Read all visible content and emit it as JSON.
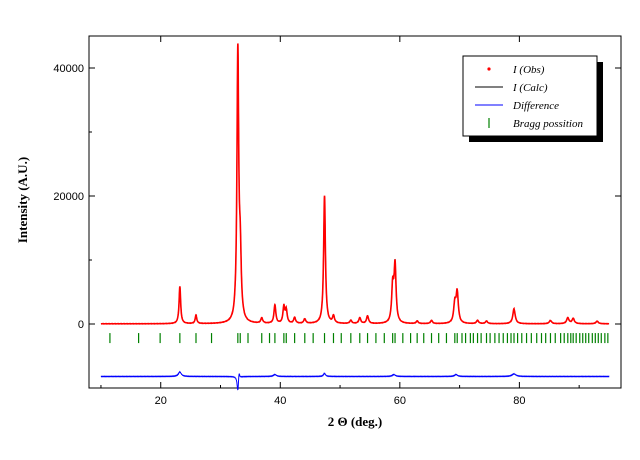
{
  "chart_data": {
    "type": "line",
    "title": "",
    "xlabel": "2 Θ (deg.)",
    "ylabel": "Intensity (A.U.)",
    "xlim": [
      8,
      97
    ],
    "ylim": [
      -10000,
      45000
    ],
    "x_ticks": [
      20,
      40,
      60,
      80
    ],
    "x_tick_labels": [
      "20",
      "40",
      "60",
      "80"
    ],
    "y_ticks": [
      0,
      20000,
      40000
    ],
    "y_tick_labels": [
      "0",
      "20000",
      "40000"
    ],
    "grid": false,
    "legend_position": "top-right",
    "legend": [
      {
        "label": "I (Obs)",
        "color": "#ff0000",
        "marker": "dot"
      },
      {
        "label": "I (Calc)",
        "color": "#000000",
        "marker": "line"
      },
      {
        "label": "Difference",
        "color": "#0000ff",
        "marker": "line"
      },
      {
        "label": "Bragg possition",
        "color": "#008000",
        "marker": "tick"
      }
    ],
    "pattern_range": [
      10,
      95
    ],
    "background": 30,
    "peaks": [
      {
        "x": 23.2,
        "y": 5800,
        "w": 0.16
      },
      {
        "x": 25.9,
        "y": 1300,
        "w": 0.16
      },
      {
        "x": 32.9,
        "y": 41500,
        "w": 0.18
      },
      {
        "x": 33.3,
        "y": 9000,
        "w": 0.2
      },
      {
        "x": 36.9,
        "y": 800,
        "w": 0.2
      },
      {
        "x": 39.1,
        "y": 2900,
        "w": 0.18
      },
      {
        "x": 40.6,
        "y": 2600,
        "w": 0.18
      },
      {
        "x": 41.0,
        "y": 2000,
        "w": 0.18
      },
      {
        "x": 42.4,
        "y": 900,
        "w": 0.2
      },
      {
        "x": 44.1,
        "y": 700,
        "w": 0.2
      },
      {
        "x": 47.4,
        "y": 19800,
        "w": 0.18
      },
      {
        "x": 48.9,
        "y": 1100,
        "w": 0.2
      },
      {
        "x": 51.8,
        "y": 500,
        "w": 0.2
      },
      {
        "x": 53.3,
        "y": 900,
        "w": 0.2
      },
      {
        "x": 54.6,
        "y": 1200,
        "w": 0.2
      },
      {
        "x": 58.8,
        "y": 5500,
        "w": 0.2
      },
      {
        "x": 59.2,
        "y": 8900,
        "w": 0.2
      },
      {
        "x": 62.9,
        "y": 400,
        "w": 0.2
      },
      {
        "x": 65.3,
        "y": 500,
        "w": 0.2
      },
      {
        "x": 69.2,
        "y": 3000,
        "w": 0.22
      },
      {
        "x": 69.6,
        "y": 4700,
        "w": 0.22
      },
      {
        "x": 73.0,
        "y": 500,
        "w": 0.22
      },
      {
        "x": 74.5,
        "y": 400,
        "w": 0.22
      },
      {
        "x": 79.1,
        "y": 2300,
        "w": 0.24
      },
      {
        "x": 85.2,
        "y": 500,
        "w": 0.24
      },
      {
        "x": 88.1,
        "y": 900,
        "w": 0.24
      },
      {
        "x": 89.0,
        "y": 800,
        "w": 0.24
      },
      {
        "x": 93.0,
        "y": 400,
        "w": 0.24
      }
    ],
    "bragg_y": -2200,
    "bragg_positions": [
      11.5,
      16.3,
      19.9,
      23.2,
      25.9,
      28.5,
      32.9,
      33.3,
      34.6,
      36.9,
      38.2,
      39.1,
      40.6,
      41.0,
      42.4,
      44.1,
      45.5,
      47.4,
      48.9,
      50.2,
      51.8,
      53.3,
      54.6,
      56.0,
      57.4,
      58.8,
      59.2,
      60.5,
      61.8,
      62.9,
      64.0,
      65.3,
      66.5,
      67.8,
      69.2,
      69.6,
      70.4,
      71.0,
      71.8,
      72.3,
      73.0,
      73.6,
      74.5,
      75.1,
      75.9,
      76.6,
      77.3,
      78.0,
      78.6,
      79.1,
      79.7,
      80.4,
      81.2,
      82.0,
      82.9,
      83.7,
      84.4,
      85.2,
      86.0,
      86.9,
      87.5,
      88.1,
      88.6,
      89.0,
      89.5,
      90.1,
      90.6,
      91.1,
      91.6,
      92.2,
      92.7,
      93.2,
      93.7,
      94.3,
      94.8
    ],
    "difference_baseline": -8200,
    "difference_features": [
      {
        "x": 23.2,
        "dy": 700,
        "w": 0.3
      },
      {
        "x": 32.9,
        "dy": -2400,
        "w": 0.15
      },
      {
        "x": 33.1,
        "dy": 1200,
        "w": 0.12
      },
      {
        "x": 39.1,
        "dy": 300,
        "w": 0.3
      },
      {
        "x": 47.4,
        "dy": 500,
        "w": 0.2
      },
      {
        "x": 59.0,
        "dy": 300,
        "w": 0.3
      },
      {
        "x": 69.4,
        "dy": 300,
        "w": 0.3
      },
      {
        "x": 79.1,
        "dy": 400,
        "w": 0.4
      }
    ]
  }
}
